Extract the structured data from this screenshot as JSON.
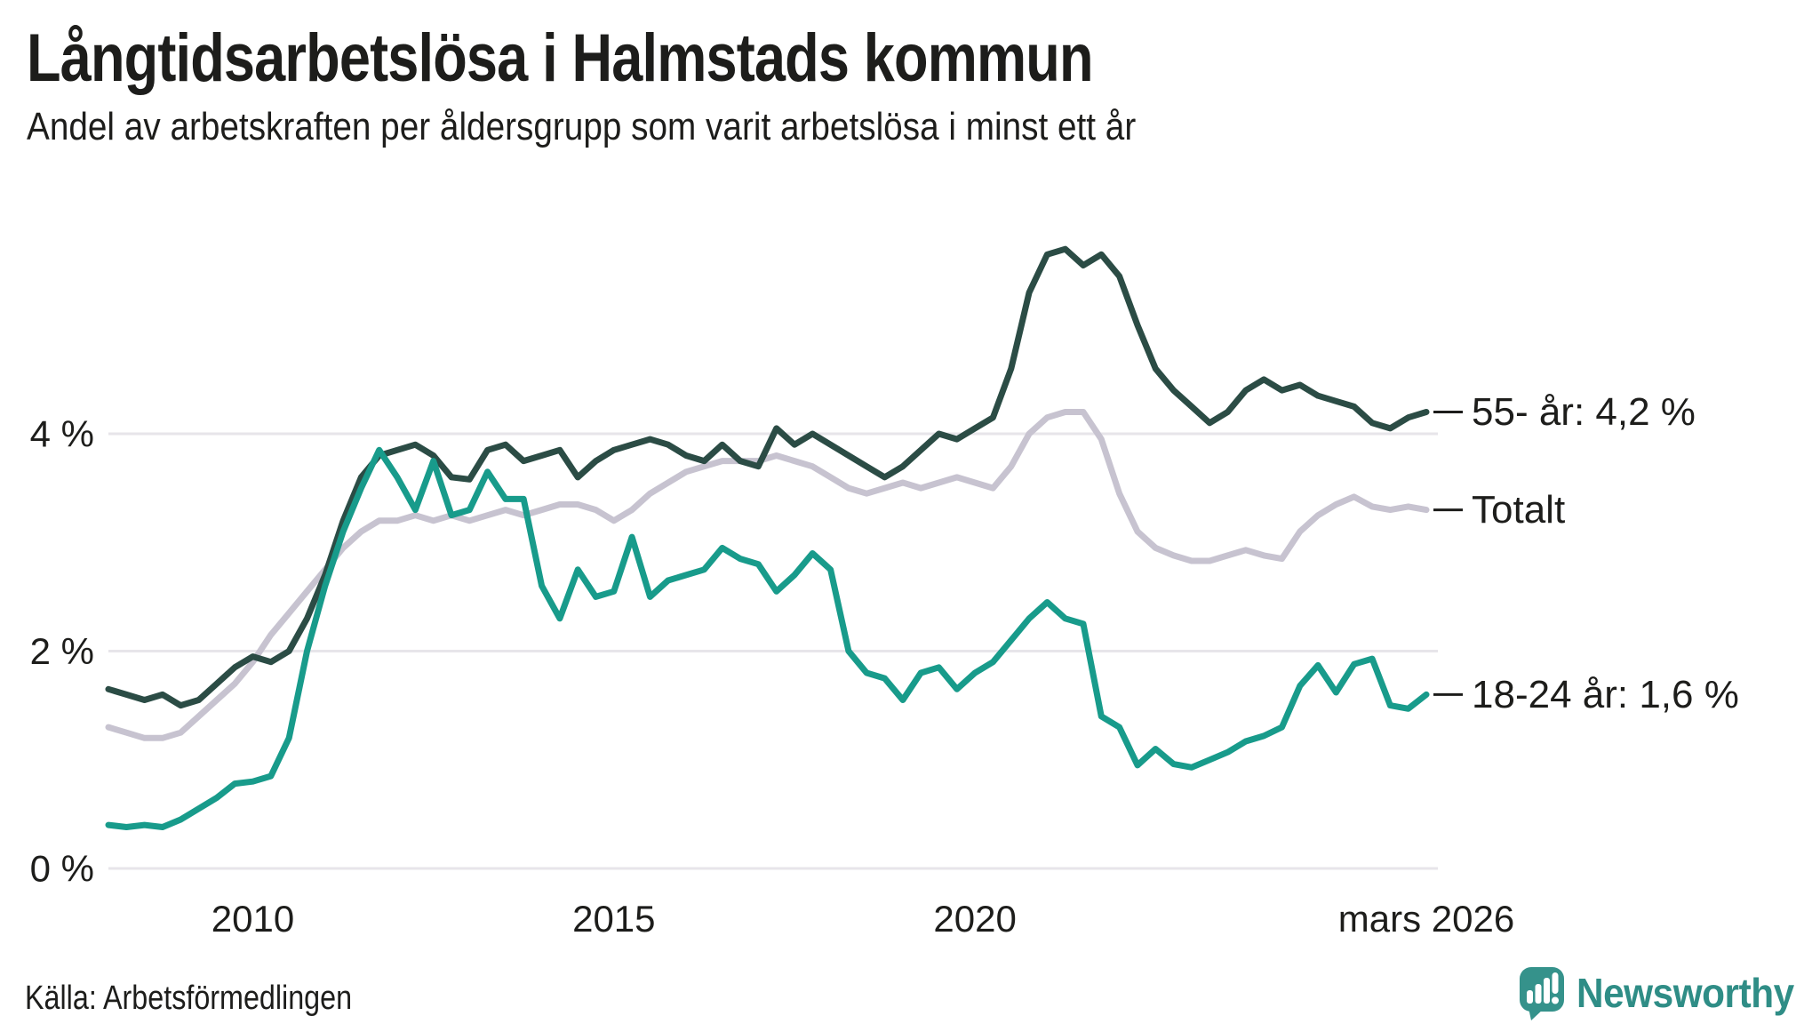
{
  "header": {
    "title": "Långtidsarbetslösa i Halmstads kommun",
    "subtitle": "Andel av arbetskraften per åldersgrupp som varit arbetslösa i minst ett år"
  },
  "footer": {
    "source": "Källa: Arbetsförmedlingen",
    "brand": "Newsworthy"
  },
  "colors": {
    "series_55": "#2B4C45",
    "series_total": "#C7C3D0",
    "series_1824": "#189B8B",
    "gridline": "#E7E5EA",
    "text": "#1D1D1B",
    "label_dash": "#1D1D1B",
    "brand_teal": "#35928B",
    "background": "#FFFFFF"
  },
  "chart_data": {
    "type": "line",
    "title": "Långtidsarbetslösa i Halmstads kommun",
    "subtitle": "Andel av arbetskraften per åldersgrupp som varit arbetslösa i minst ett år",
    "xlabel": "",
    "ylabel": "",
    "x_start": 2008.0,
    "x_step": 0.25,
    "x_domain": [
      2008.0,
      2026.25
    ],
    "ylim": [
      0,
      6
    ],
    "grid": "horizontal",
    "legend_position": "right-edge-labels",
    "yticks": [
      {
        "value": 0,
        "label": "0 %"
      },
      {
        "value": 2,
        "label": "2 %"
      },
      {
        "value": 4,
        "label": "4 %"
      }
    ],
    "xticks": [
      {
        "value": 2010,
        "label": "2010"
      },
      {
        "value": 2015,
        "label": "2015"
      },
      {
        "value": 2020,
        "label": "2020"
      },
      {
        "value": 2026.25,
        "label": "mars 2026"
      }
    ],
    "series": [
      {
        "name": "55- år",
        "label": "55- år: 4,2 %",
        "end_value": 4.2,
        "color": "#2B4C45",
        "draw_order": 2,
        "values": [
          1.65,
          1.6,
          1.55,
          1.6,
          1.5,
          1.55,
          1.7,
          1.85,
          1.95,
          1.9,
          2.0,
          2.3,
          2.7,
          3.2,
          3.6,
          3.8,
          3.85,
          3.9,
          3.8,
          3.6,
          3.58,
          3.85,
          3.9,
          3.75,
          3.8,
          3.85,
          3.6,
          3.75,
          3.85,
          3.9,
          3.95,
          3.9,
          3.8,
          3.75,
          3.9,
          3.75,
          3.7,
          4.05,
          3.9,
          4.0,
          3.9,
          3.8,
          3.7,
          3.6,
          3.7,
          3.85,
          4.0,
          3.95,
          4.05,
          4.15,
          4.6,
          5.3,
          5.65,
          5.7,
          5.55,
          5.65,
          5.45,
          5.0,
          4.6,
          4.4,
          4.25,
          4.1,
          4.2,
          4.4,
          4.5,
          4.4,
          4.45,
          4.35,
          4.3,
          4.25,
          4.1,
          4.05,
          4.15,
          4.2
        ]
      },
      {
        "name": "Totalt",
        "label": "Totalt",
        "end_value": 3.3,
        "color": "#C7C3D0",
        "draw_order": 1,
        "values": [
          1.3,
          1.25,
          1.2,
          1.2,
          1.25,
          1.4,
          1.55,
          1.7,
          1.9,
          2.15,
          2.35,
          2.55,
          2.75,
          2.95,
          3.1,
          3.2,
          3.2,
          3.25,
          3.2,
          3.25,
          3.2,
          3.25,
          3.3,
          3.25,
          3.3,
          3.35,
          3.35,
          3.3,
          3.2,
          3.3,
          3.45,
          3.55,
          3.65,
          3.7,
          3.75,
          3.75,
          3.75,
          3.8,
          3.75,
          3.7,
          3.6,
          3.5,
          3.45,
          3.5,
          3.55,
          3.5,
          3.55,
          3.6,
          3.55,
          3.5,
          3.7,
          4.0,
          4.15,
          4.2,
          4.2,
          3.95,
          3.45,
          3.1,
          2.95,
          2.88,
          2.83,
          2.83,
          2.88,
          2.93,
          2.88,
          2.85,
          3.1,
          3.25,
          3.35,
          3.42,
          3.33,
          3.3,
          3.33,
          3.3
        ]
      },
      {
        "name": "18-24 år",
        "label": "18-24 år: 1,6 %",
        "end_value": 1.6,
        "color": "#189B8B",
        "draw_order": 3,
        "values": [
          0.4,
          0.38,
          0.4,
          0.38,
          0.45,
          0.55,
          0.65,
          0.78,
          0.8,
          0.85,
          1.2,
          2.0,
          2.6,
          3.1,
          3.5,
          3.85,
          3.6,
          3.3,
          3.75,
          3.25,
          3.3,
          3.65,
          3.4,
          3.4,
          2.6,
          2.3,
          2.75,
          2.5,
          2.55,
          3.05,
          2.5,
          2.65,
          2.7,
          2.75,
          2.95,
          2.85,
          2.8,
          2.55,
          2.7,
          2.9,
          2.75,
          2.0,
          1.8,
          1.75,
          1.55,
          1.8,
          1.85,
          1.65,
          1.8,
          1.9,
          2.1,
          2.3,
          2.45,
          2.3,
          2.25,
          1.4,
          1.3,
          0.95,
          1.1,
          0.96,
          0.93,
          1.0,
          1.07,
          1.17,
          1.22,
          1.3,
          1.68,
          1.87,
          1.62,
          1.88,
          1.93,
          1.5,
          1.47,
          1.6
        ]
      }
    ]
  }
}
